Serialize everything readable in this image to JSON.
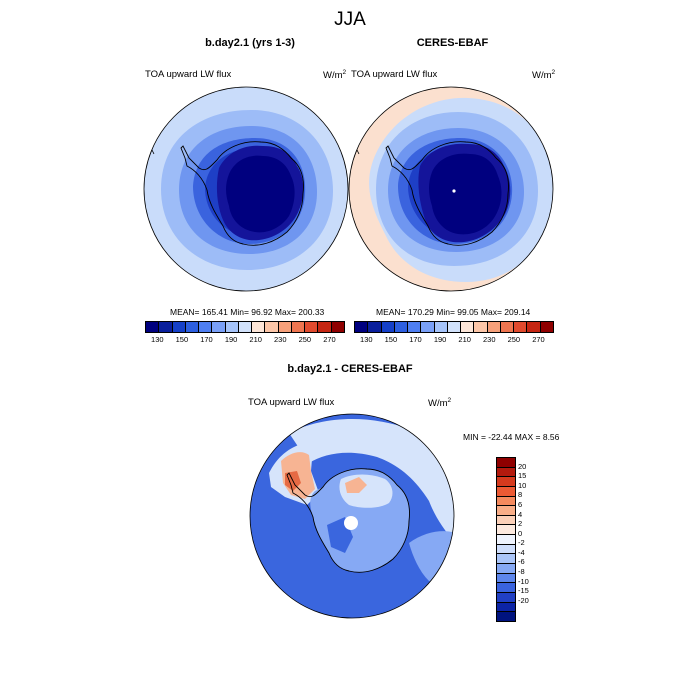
{
  "title": "JJA",
  "top_left": {
    "case": "b.day2.1 (yrs 1-3)",
    "variable": "TOA upward LW flux",
    "units_base": "W/m",
    "units_exp": "2",
    "stats": "MEAN= 165.41  Min=  96.92  Max= 200.33"
  },
  "top_right": {
    "case": "CERES-EBAF",
    "variable": "TOA upward LW flux",
    "units_base": "W/m",
    "units_exp": "2",
    "stats": "MEAN= 170.29  Min=  99.05  Max= 209.14"
  },
  "abs_colorbar": {
    "colors": [
      "#00007f",
      "#0a1f9c",
      "#1540c8",
      "#2d5fe0",
      "#4f7ff2",
      "#7aa0f7",
      "#a6c4fa",
      "#d2e2fb",
      "#fde6d8",
      "#fcc6a8",
      "#f6a07a",
      "#ee7550",
      "#e04a2e",
      "#c52612",
      "#8f0000"
    ],
    "labels": [
      "130",
      "150",
      "170",
      "190",
      "210",
      "230",
      "250",
      "270"
    ]
  },
  "bottom": {
    "case": "b.day2.1 - CERES-EBAF",
    "variable": "TOA upward LW flux",
    "units_base": "W/m",
    "units_exp": "2",
    "stats": "MIN = -22.44 MAX =   8.56"
  },
  "diff_colorbar": {
    "colors": [
      "#8f0000",
      "#b31a0e",
      "#d53a1e",
      "#ec5a34",
      "#f58a5e",
      "#f9ae88",
      "#fbd0b8",
      "#fce9de",
      "#eef3fd",
      "#cfdefb",
      "#aac5f8",
      "#86a9f4",
      "#5d86ec",
      "#3a63de",
      "#2140c4",
      "#0c24a6",
      "#00137f"
    ],
    "labels": [
      "20",
      "15",
      "10",
      "8",
      "6",
      "4",
      "2",
      "0",
      "-2",
      "-4",
      "-6",
      "-8",
      "-10",
      "-15",
      "-20"
    ]
  },
  "map_palette": {
    "land_core": "#00007f",
    "land_edge": "#14149a",
    "ring1": "#1e3fc6",
    "ring2": "#3a63de",
    "ring3": "#6f96f0",
    "ring4": "#9dbcf7",
    "outer": "#c9dcfa",
    "warm": "#fbe0cf",
    "diff_base": "#3a66de",
    "diff_light": "#86a9f4",
    "diff_pale": "#d6e4fb",
    "diff_warm": "#f7b493",
    "diff_red": "#e66a44"
  }
}
